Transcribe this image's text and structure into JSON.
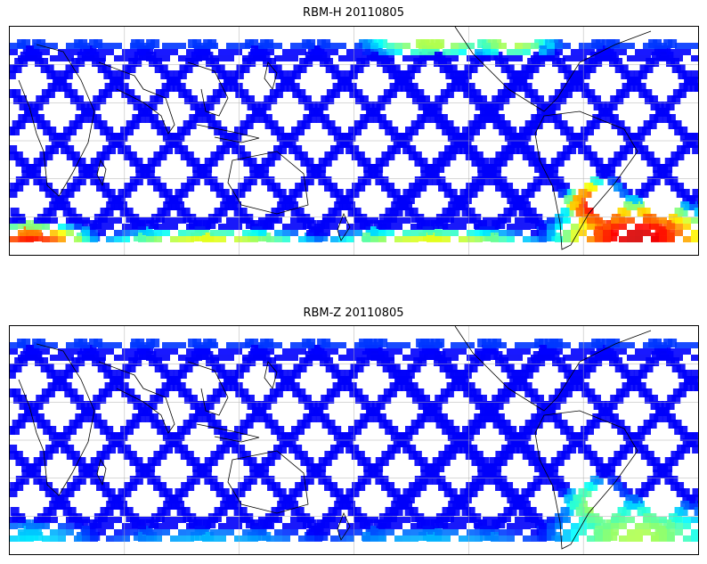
{
  "panels": [
    {
      "title": "RBM-H 20110805",
      "colormap": "jet",
      "hot_zones": [
        {
          "region": "south-atlantic",
          "level": 0.92
        },
        {
          "region": "southern-ocean-west",
          "level": 0.85
        },
        {
          "region": "north-pacific-west",
          "level": 0.55
        },
        {
          "region": "south-pacific-band",
          "level": 0.6
        }
      ],
      "base_level": 0.12
    },
    {
      "title": "RBM-Z 20110805",
      "colormap": "jet",
      "hot_zones": [
        {
          "region": "south-atlantic",
          "level": 0.55
        },
        {
          "region": "southern-ocean-west",
          "level": 0.35
        },
        {
          "region": "south-pacific-band",
          "level": 0.3
        }
      ],
      "base_level": 0.12
    }
  ],
  "map": {
    "projection": "plate-carree",
    "coastlines": true,
    "gridlines": true,
    "colors": {
      "frame": "#000000",
      "grid": "#b0b0b0",
      "coast": "#000000"
    }
  }
}
